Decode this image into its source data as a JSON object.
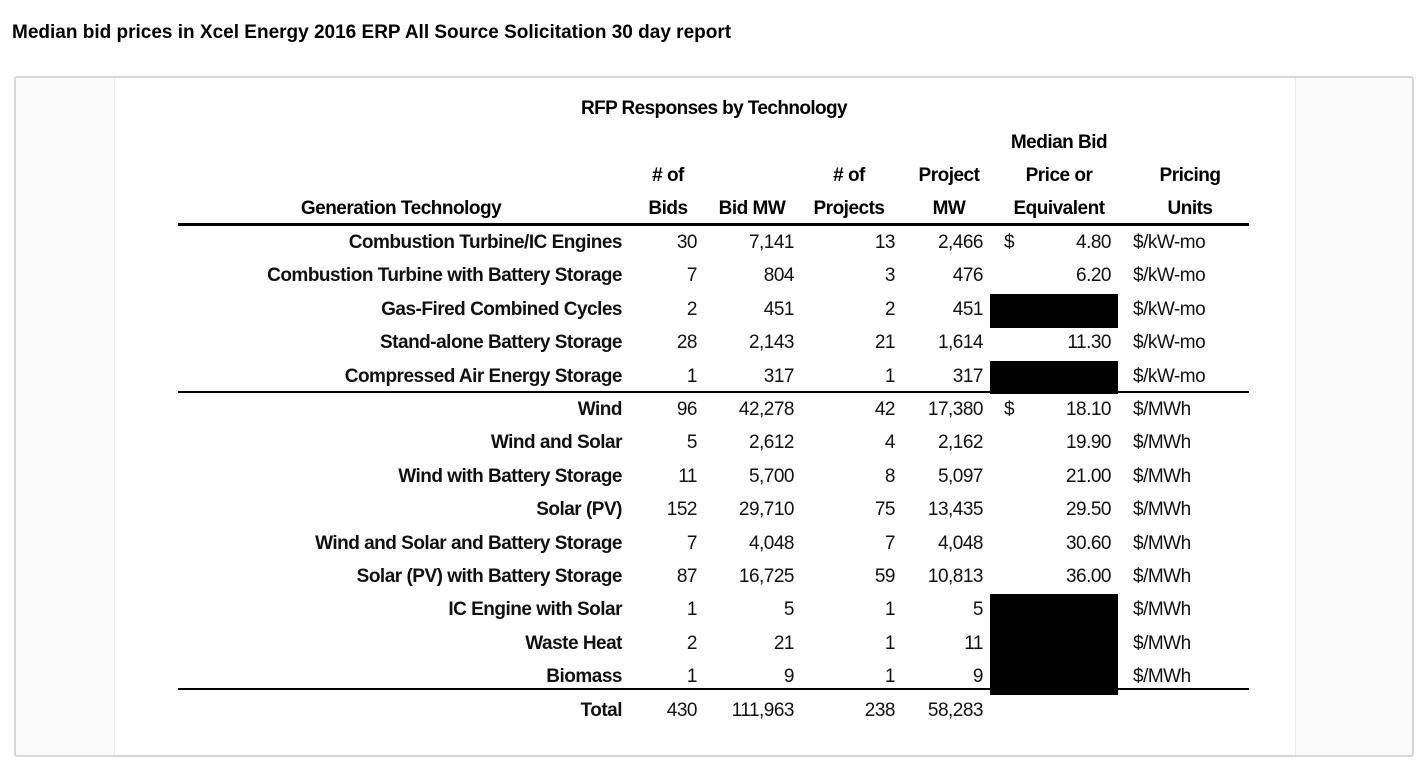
{
  "heading": "Median bid prices in Xcel Energy 2016 ERP All Source Solicitation 30 day report",
  "table": {
    "title": "RFP Responses by Technology",
    "headers": {
      "technology": "Generation Technology",
      "bids_1": "# of",
      "bids_2": "Bids",
      "bid_mw": "Bid MW",
      "projects_1": "# of",
      "projects_2": "Projects",
      "project_mw_1": "Project",
      "project_mw_2": "MW",
      "price_1": "Median Bid",
      "price_2": "Price or",
      "price_3": "Equivalent",
      "units_1": "Pricing",
      "units_2": "Units"
    },
    "rows": [
      {
        "technology": "Combustion Turbine/IC Engines",
        "bids": "30",
        "bid_mw": "7,141",
        "projects": "13",
        "project_mw": "2,466",
        "dollar": "$",
        "price": "4.80",
        "units": "$/kW-mo",
        "redacted": false
      },
      {
        "technology": "Combustion Turbine with Battery Storage",
        "bids": "7",
        "bid_mw": "804",
        "projects": "3",
        "project_mw": "476",
        "dollar": "",
        "price": "6.20",
        "units": "$/kW-mo",
        "redacted": false
      },
      {
        "technology": "Gas-Fired Combined Cycles",
        "bids": "2",
        "bid_mw": "451",
        "projects": "2",
        "project_mw": "451",
        "dollar": "",
        "price": "",
        "units": "$/kW-mo",
        "redacted": true
      },
      {
        "technology": "Stand-alone Battery Storage",
        "bids": "28",
        "bid_mw": "2,143",
        "projects": "21",
        "project_mw": "1,614",
        "dollar": "",
        "price": "11.30",
        "units": "$/kW-mo",
        "redacted": false
      },
      {
        "technology": "Compressed Air Energy Storage",
        "bids": "1",
        "bid_mw": "317",
        "projects": "1",
        "project_mw": "317",
        "dollar": "",
        "price": "",
        "units": "$/kW-mo",
        "redacted": true
      },
      {
        "technology": "Wind",
        "bids": "96",
        "bid_mw": "42,278",
        "projects": "42",
        "project_mw": "17,380",
        "dollar": "$",
        "price": "18.10",
        "units": "$/MWh",
        "redacted": false
      },
      {
        "technology": "Wind and Solar",
        "bids": "5",
        "bid_mw": "2,612",
        "projects": "4",
        "project_mw": "2,162",
        "dollar": "",
        "price": "19.90",
        "units": "$/MWh",
        "redacted": false
      },
      {
        "technology": "Wind with Battery Storage",
        "bids": "11",
        "bid_mw": "5,700",
        "projects": "8",
        "project_mw": "5,097",
        "dollar": "",
        "price": "21.00",
        "units": "$/MWh",
        "redacted": false
      },
      {
        "technology": "Solar (PV)",
        "bids": "152",
        "bid_mw": "29,710",
        "projects": "75",
        "project_mw": "13,435",
        "dollar": "",
        "price": "29.50",
        "units": "$/MWh",
        "redacted": false
      },
      {
        "technology": "Wind and Solar and Battery Storage",
        "bids": "7",
        "bid_mw": "4,048",
        "projects": "7",
        "project_mw": "4,048",
        "dollar": "",
        "price": "30.60",
        "units": "$/MWh",
        "redacted": false
      },
      {
        "technology": "Solar (PV) with Battery Storage",
        "bids": "87",
        "bid_mw": "16,725",
        "projects": "59",
        "project_mw": "10,813",
        "dollar": "",
        "price": "36.00",
        "units": "$/MWh",
        "redacted": false
      },
      {
        "technology": "IC Engine with Solar",
        "bids": "1",
        "bid_mw": "5",
        "projects": "1",
        "project_mw": "5",
        "dollar": "",
        "price": "",
        "units": "$/MWh",
        "redacted": true
      },
      {
        "technology": "Waste Heat",
        "bids": "2",
        "bid_mw": "21",
        "projects": "1",
        "project_mw": "11",
        "dollar": "",
        "price": "",
        "units": "$/MWh",
        "redacted": true
      },
      {
        "technology": "Biomass",
        "bids": "1",
        "bid_mw": "9",
        "projects": "1",
        "project_mw": "9",
        "dollar": "",
        "price": "",
        "units": "$/MWh",
        "redacted": true
      }
    ],
    "total": {
      "technology": "Total",
      "bids": "430",
      "bid_mw": "111,963",
      "projects": "238",
      "project_mw": "58,283"
    }
  }
}
